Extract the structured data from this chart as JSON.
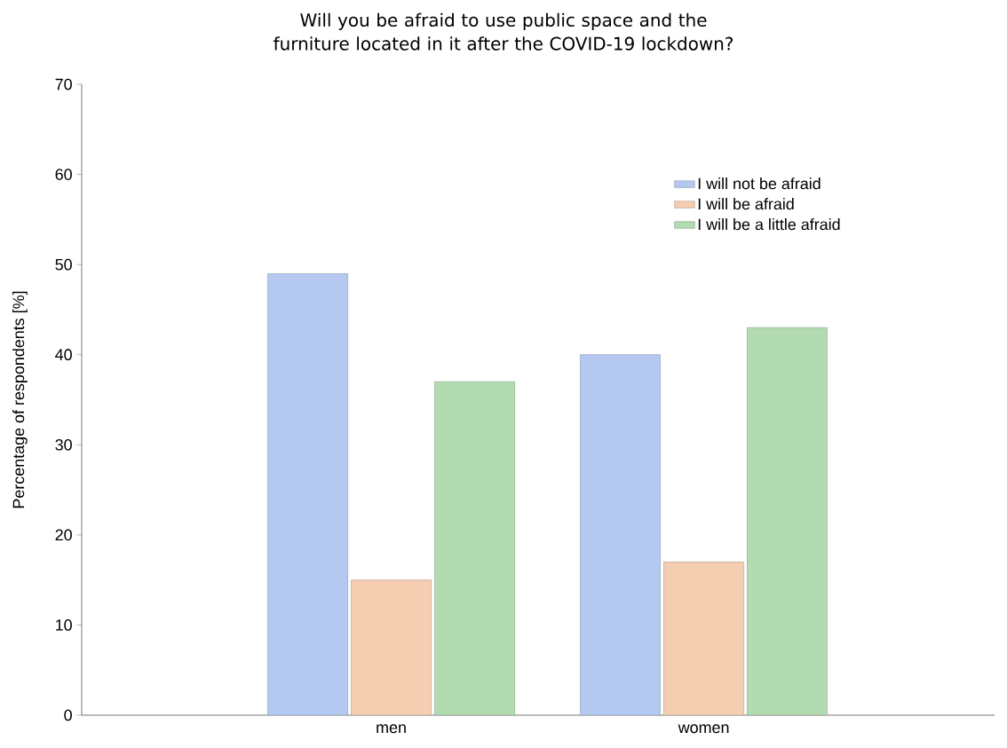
{
  "chart_data": {
    "type": "bar",
    "title": "Will you be afraid to use public space and the furniture located in it after the COVID-19 lockdown?",
    "ylabel": "Percentage of respondents [%]",
    "categories": [
      "men",
      "women"
    ],
    "series": [
      {
        "name": "I will not be afraid",
        "color": "#b4c8f0",
        "values": [
          49,
          40
        ]
      },
      {
        "name": "I will be afraid",
        "color": "#f5cdb0",
        "values": [
          15,
          17
        ]
      },
      {
        "name": "I will be a little afraid",
        "color": "#b2dbb2",
        "values": [
          37,
          43
        ]
      }
    ],
    "ylim": [
      0,
      70
    ],
    "yticks": [
      0,
      10,
      20,
      30,
      40,
      50,
      60,
      70
    ],
    "legend": "top right"
  }
}
